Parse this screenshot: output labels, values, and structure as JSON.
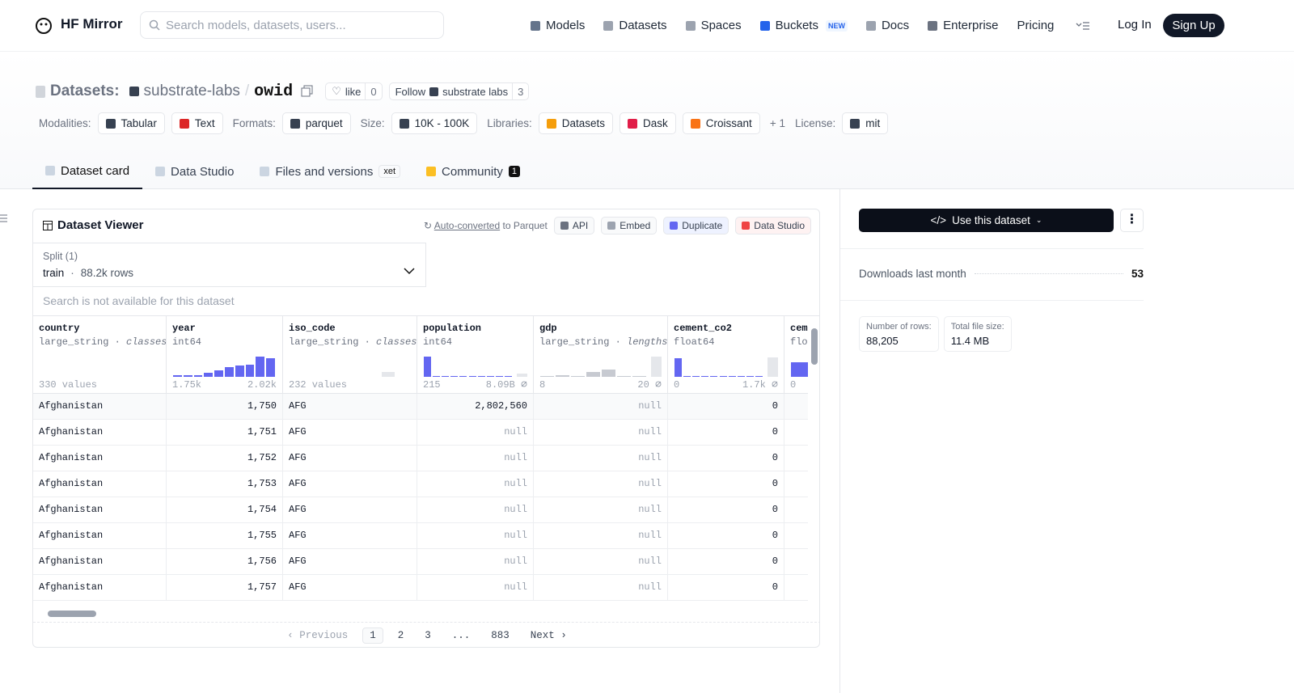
{
  "nav": {
    "brand": "HF Mirror",
    "search_placeholder": "Search models, datasets, users...",
    "links": [
      "Models",
      "Datasets",
      "Spaces",
      "Buckets",
      "Docs",
      "Enterprise",
      "Pricing"
    ],
    "badge": "NEW",
    "login": "Log In",
    "signup": "Sign Up"
  },
  "header": {
    "prefix": "Datasets:",
    "owner": "substrate-labs",
    "separator": "/",
    "name": "owid",
    "like": "like",
    "like_count": 0,
    "follow": "Follow",
    "follow_org": "substrate labs",
    "follow_count": 3,
    "meta": [
      {
        "label": "Modalities:",
        "tags": [
          "Tabular",
          "Text"
        ]
      },
      {
        "label": "Formats:",
        "tags": [
          "parquet"
        ]
      },
      {
        "label": "Size:",
        "tags": [
          "10K - 100K"
        ]
      },
      {
        "label": "Libraries:",
        "tags": [
          "Datasets",
          "Dask",
          "Croissant"
        ],
        "more": "+ 1"
      },
      {
        "label": "License:",
        "tags": [
          "mit"
        ]
      }
    ]
  },
  "tabs": [
    {
      "label": "Dataset card"
    },
    {
      "label": "Data Studio"
    },
    {
      "label": "Files and versions",
      "badge": "xet"
    },
    {
      "label": "Community",
      "badge": 1
    }
  ],
  "viewer": {
    "title": "Dataset Viewer",
    "converted_link": "Auto-converted",
    "converted_rest": "to Parquet",
    "actions": [
      "API",
      "Embed",
      "Duplicate",
      "Data Studio"
    ],
    "split_label": "Split (1)",
    "split": "train",
    "split_sep": "·",
    "split_rows": "88.2k rows",
    "search": "Search is not available for this dataset",
    "bar_color": "#6366f1",
    "null_color": "#e5e7eb",
    "columns": [
      {
        "name": "country",
        "type": "large_string",
        "sep": "·",
        "kind": "classes",
        "footer": "330 values"
      },
      {
        "name": "year",
        "type": "int64",
        "min": "1.75k",
        "max": "2.02k",
        "hist": [
          2,
          2,
          2,
          5,
          8,
          12,
          14,
          15,
          25,
          23
        ]
      },
      {
        "name": "iso_code",
        "type": "large_string",
        "sep": "·",
        "kind": "classes",
        "footer": "232 values",
        "null_bar": 6
      },
      {
        "name": "population",
        "type": "int64",
        "min": "215",
        "max": "8.09B",
        "hist": [
          25,
          1,
          1,
          1,
          1,
          1,
          1,
          1,
          1,
          1
        ],
        "null_bar": 4
      },
      {
        "name": "gdp",
        "type": "large_string",
        "sep": "·",
        "kind": "lengths",
        "min": "8",
        "max": "20",
        "hist": [
          1,
          2,
          1,
          6,
          9,
          1,
          1
        ],
        "hist_color": "#c7cad1",
        "null_bar": 25
      },
      {
        "name": "cement_co2",
        "type": "float64",
        "min": "0",
        "max": "1.7k",
        "hist": [
          23,
          1,
          1,
          1,
          1,
          1,
          1,
          1,
          1,
          1
        ],
        "null_bar": 24
      },
      {
        "name": "cem",
        "type": "flo",
        "min": "0",
        "hist": [
          18,
          2,
          1
        ]
      }
    ],
    "rows": [
      [
        "Afghanistan",
        "1,750",
        "AFG",
        "2,802,560",
        "null",
        "0"
      ],
      [
        "Afghanistan",
        "1,751",
        "AFG",
        "null",
        "null",
        "0"
      ],
      [
        "Afghanistan",
        "1,752",
        "AFG",
        "null",
        "null",
        "0"
      ],
      [
        "Afghanistan",
        "1,753",
        "AFG",
        "null",
        "null",
        "0"
      ],
      [
        "Afghanistan",
        "1,754",
        "AFG",
        "null",
        "null",
        "0"
      ],
      [
        "Afghanistan",
        "1,755",
        "AFG",
        "null",
        "null",
        "0"
      ],
      [
        "Afghanistan",
        "1,756",
        "AFG",
        "null",
        "null",
        "0"
      ],
      [
        "Afghanistan",
        "1,757",
        "AFG",
        "null",
        "null",
        "0"
      ]
    ],
    "pagination": {
      "previous": "Previous",
      "pages": [
        "1",
        "2",
        "3",
        "...",
        "883"
      ],
      "next": "Next"
    }
  },
  "sidebar": {
    "use": "Use this dataset",
    "downloads_label": "Downloads last month",
    "downloads": 53,
    "stats": [
      {
        "label": "Number of rows:",
        "value": "88,205"
      },
      {
        "label": "Total file size:",
        "value": "11.4 MB"
      }
    ]
  }
}
